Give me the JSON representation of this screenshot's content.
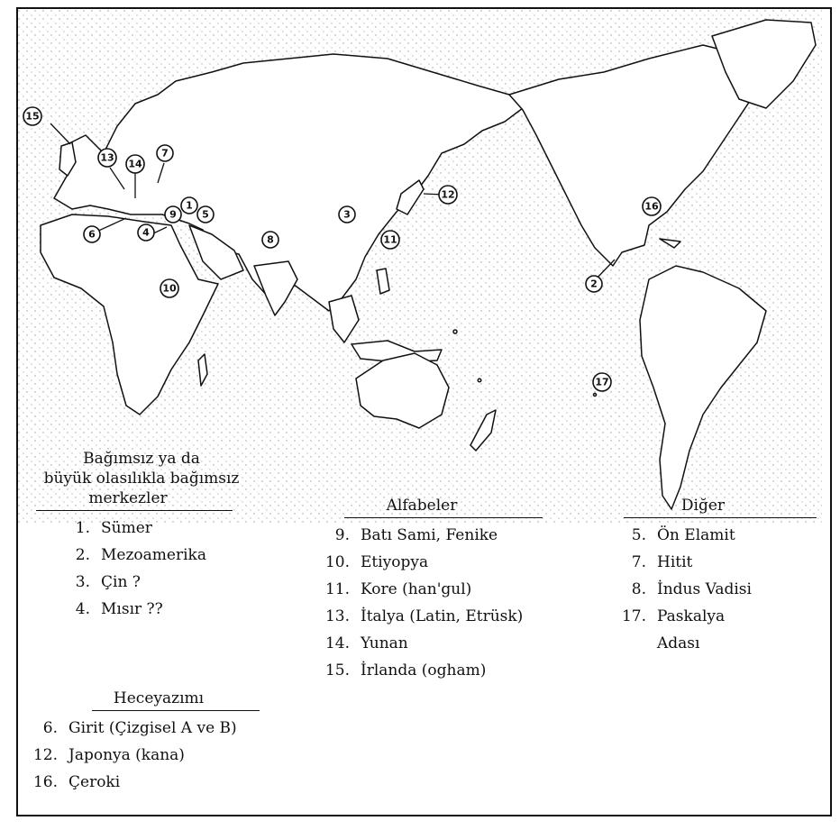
{
  "colors": {
    "ink": "#111111",
    "paper": "#ffffff",
    "stipple": "#9a9a9a"
  },
  "markers": [
    {
      "n": "1"
    },
    {
      "n": "2"
    },
    {
      "n": "3"
    },
    {
      "n": "4"
    },
    {
      "n": "5"
    },
    {
      "n": "6"
    },
    {
      "n": "7"
    },
    {
      "n": "8"
    },
    {
      "n": "9"
    },
    {
      "n": "10"
    },
    {
      "n": "11"
    },
    {
      "n": "12"
    },
    {
      "n": "13"
    },
    {
      "n": "14"
    },
    {
      "n": "15"
    },
    {
      "n": "16"
    },
    {
      "n": "17"
    }
  ],
  "legend": {
    "centers": {
      "title_line1": "Bağımsız ya da",
      "title_line2": "büyük olasılıkla bağımsız",
      "title_line3": "merkezler",
      "items": [
        {
          "num": "1.",
          "label": "Sümer"
        },
        {
          "num": "2.",
          "label": "Mezoamerika"
        },
        {
          "num": "3.",
          "label": "Çin ?"
        },
        {
          "num": "4.",
          "label": "Mısır ??"
        }
      ]
    },
    "alphabets": {
      "title": "Alfabeler",
      "items": [
        {
          "num": "9.",
          "label": "Batı Sami, Fenike"
        },
        {
          "num": "10.",
          "label": "Etiyopya"
        },
        {
          "num": "11.",
          "label": "Kore (han'gul)"
        },
        {
          "num": "13.",
          "label": "İtalya (Latin, Etrüsk)"
        },
        {
          "num": "14.",
          "label": "Yunan"
        },
        {
          "num": "15.",
          "label": "İrlanda (ogham)"
        }
      ]
    },
    "other": {
      "title": "Diğer",
      "items": [
        {
          "num": "5.",
          "label": "Ön Elamit"
        },
        {
          "num": "7.",
          "label": "Hitit"
        },
        {
          "num": "8.",
          "label": "İndus Vadisi"
        },
        {
          "num": "17.",
          "label": "Paskalya"
        },
        {
          "num": "",
          "label": "Adası"
        }
      ]
    },
    "syllabaries": {
      "title": "Heceyazımı",
      "items": [
        {
          "num": "6.",
          "label": "Girit (Çizgisel A ve B)"
        },
        {
          "num": "12.",
          "label": "Japonya (kana)"
        },
        {
          "num": "16.",
          "label": "Çeroki"
        }
      ]
    }
  }
}
